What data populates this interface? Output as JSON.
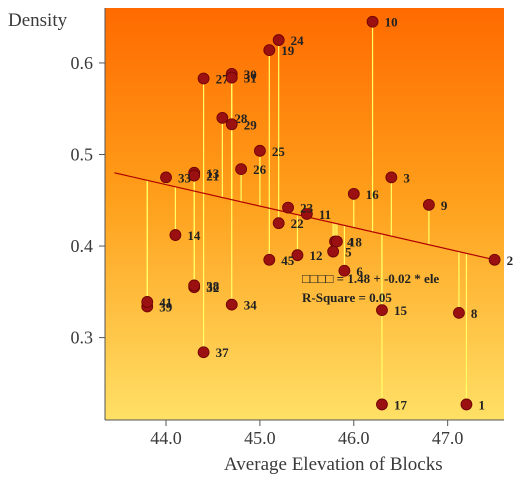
{
  "chart_data": {
    "type": "scatter",
    "ylabel": "Density",
    "xlabel": "Average Elevation of Blocks",
    "xlim": [
      43.35,
      47.6
    ],
    "ylim": [
      0.21,
      0.66
    ],
    "x_ticks": [
      44.0,
      45.0,
      46.0,
      47.0
    ],
    "x_tick_labels": [
      "44.0",
      "45.0",
      "46.0",
      "47.0"
    ],
    "y_ticks": [
      0.3,
      0.4,
      0.5,
      0.6
    ],
    "y_tick_labels": [
      "0.3",
      "0.4",
      "0.5",
      "0.6"
    ],
    "grid": false,
    "regression": {
      "intercept": 1.48,
      "slope": -0.02,
      "x_range": [
        43.45,
        47.5
      ]
    },
    "annotations": {
      "equation": "□□□□ = 1.48 + -0.02 * ele",
      "r_square": "R-Square = 0.05"
    },
    "points": [
      {
        "id": "1",
        "x": 47.2,
        "y": 0.227
      },
      {
        "id": "2",
        "x": 47.5,
        "y": 0.385
      },
      {
        "id": "3",
        "x": 46.4,
        "y": 0.475
      },
      {
        "id": "4",
        "x": 45.8,
        "y": 0.405
      },
      {
        "id": "5",
        "x": 45.78,
        "y": 0.394
      },
      {
        "id": "6",
        "x": 45.9,
        "y": 0.373
      },
      {
        "id": "8",
        "x": 47.12,
        "y": 0.327
      },
      {
        "id": "9",
        "x": 46.8,
        "y": 0.445
      },
      {
        "id": "10",
        "x": 46.2,
        "y": 0.645
      },
      {
        "id": "11",
        "x": 45.5,
        "y": 0.435
      },
      {
        "id": "12",
        "x": 45.4,
        "y": 0.39
      },
      {
        "id": "13",
        "x": 44.3,
        "y": 0.48
      },
      {
        "id": "14",
        "x": 44.1,
        "y": 0.412
      },
      {
        "id": "15",
        "x": 46.3,
        "y": 0.33
      },
      {
        "id": "16",
        "x": 46.0,
        "y": 0.457
      },
      {
        "id": "17",
        "x": 46.3,
        "y": 0.227
      },
      {
        "id": "18",
        "x": 45.82,
        "y": 0.405
      },
      {
        "id": "19",
        "x": 45.1,
        "y": 0.614
      },
      {
        "id": "21",
        "x": 44.3,
        "y": 0.477
      },
      {
        "id": "22",
        "x": 45.2,
        "y": 0.425
      },
      {
        "id": "23",
        "x": 45.3,
        "y": 0.442
      },
      {
        "id": "24",
        "x": 45.2,
        "y": 0.625
      },
      {
        "id": "25",
        "x": 45.0,
        "y": 0.504
      },
      {
        "id": "26",
        "x": 44.8,
        "y": 0.484
      },
      {
        "id": "27",
        "x": 44.4,
        "y": 0.583
      },
      {
        "id": "28",
        "x": 44.6,
        "y": 0.54
      },
      {
        "id": "29",
        "x": 44.7,
        "y": 0.533
      },
      {
        "id": "30",
        "x": 44.7,
        "y": 0.588
      },
      {
        "id": "31",
        "x": 44.7,
        "y": 0.584
      },
      {
        "id": "32",
        "x": 44.3,
        "y": 0.355
      },
      {
        "id": "33",
        "x": 44.0,
        "y": 0.475
      },
      {
        "id": "34",
        "x": 44.7,
        "y": 0.336
      },
      {
        "id": "37",
        "x": 44.4,
        "y": 0.284
      },
      {
        "id": "38",
        "x": 44.3,
        "y": 0.357
      },
      {
        "id": "39",
        "x": 43.8,
        "y": 0.334
      },
      {
        "id": "41",
        "x": 43.8,
        "y": 0.339
      },
      {
        "id": "45",
        "x": 45.1,
        "y": 0.385
      }
    ]
  }
}
